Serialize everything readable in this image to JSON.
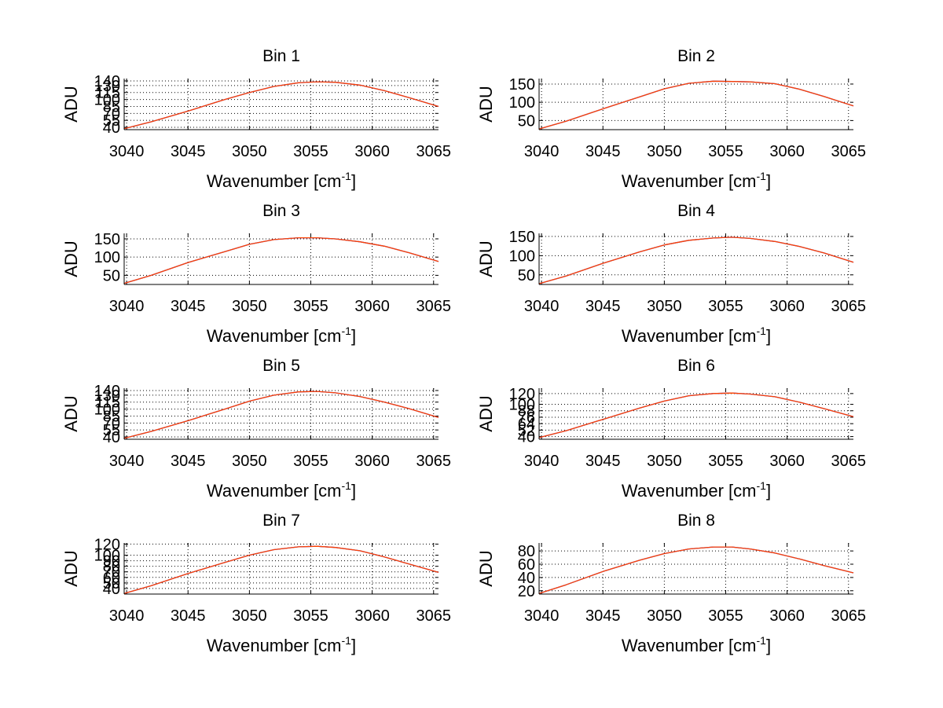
{
  "figure": {
    "background": "#ffffff"
  },
  "chart_data": [
    {
      "type": "line",
      "title": "Bin 1",
      "xlabel": "Wavenumber [cm",
      "xlabel_sup": "-1",
      "xlabel_end": "]",
      "ylabel": "ADU",
      "xlim": [
        3039.8,
        3065.4
      ],
      "ylim": [
        35,
        145
      ],
      "xticks": [
        3040,
        3045,
        3050,
        3055,
        3060,
        3065
      ],
      "yticks": [
        40,
        55,
        70,
        85,
        100,
        115,
        130,
        140
      ],
      "ytick_labels": [
        "40",
        "55",
        "70",
        "85",
        "100",
        "115",
        "130",
        "140"
      ],
      "grid": true,
      "series": [
        {
          "color": "#0000ff",
          "x": [
            3039.8,
            3042,
            3045,
            3048,
            3050,
            3052,
            3054,
            3055.5,
            3057,
            3059,
            3061,
            3063,
            3065.4
          ],
          "y": [
            37,
            52,
            75,
            100,
            115,
            128,
            136,
            138,
            137,
            131,
            119,
            104,
            85
          ]
        },
        {
          "color": "#ff4500",
          "x": [
            3039.8,
            3042,
            3045,
            3048,
            3050,
            3052,
            3054,
            3055.5,
            3057,
            3059,
            3061,
            3063,
            3065.4
          ],
          "y": [
            37,
            52,
            75,
            100,
            115,
            128,
            136,
            138,
            137,
            131,
            119,
            104,
            85
          ]
        }
      ]
    },
    {
      "type": "line",
      "title": "Bin 2",
      "xlabel": "Wavenumber [cm",
      "xlabel_sup": "-1",
      "xlabel_end": "]",
      "ylabel": "ADU",
      "xlim": [
        3039.8,
        3065.4
      ],
      "ylim": [
        25,
        165
      ],
      "xticks": [
        3040,
        3045,
        3050,
        3055,
        3060,
        3065
      ],
      "yticks": [
        50,
        100,
        150
      ],
      "ytick_labels": [
        "50",
        "100",
        "150"
      ],
      "grid": true,
      "series": [
        {
          "color": "#0000ff",
          "x": [
            3039.8,
            3042,
            3045,
            3048,
            3050,
            3052,
            3054,
            3055.5,
            3057,
            3059,
            3061,
            3063,
            3065.4
          ],
          "y": [
            27,
            48,
            82,
            115,
            137,
            152,
            158,
            157,
            156,
            151,
            136,
            116,
            90
          ]
        },
        {
          "color": "#ff4500",
          "x": [
            3039.8,
            3042,
            3045,
            3048,
            3050,
            3052,
            3054,
            3055.5,
            3057,
            3059,
            3061,
            3063,
            3065.4
          ],
          "y": [
            27,
            48,
            82,
            115,
            137,
            152,
            158,
            157,
            156,
            151,
            136,
            116,
            90
          ]
        }
      ]
    },
    {
      "type": "line",
      "title": "Bin 3",
      "xlabel": "Wavenumber [cm",
      "xlabel_sup": "-1",
      "xlabel_end": "]",
      "ylabel": "ADU",
      "xlim": [
        3039.8,
        3065.4
      ],
      "ylim": [
        25,
        165
      ],
      "xticks": [
        3040,
        3045,
        3050,
        3055,
        3060,
        3065
      ],
      "yticks": [
        50,
        100,
        150
      ],
      "ytick_labels": [
        "50",
        "100",
        "150"
      ],
      "grid": true,
      "series": [
        {
          "color": "#0000ff",
          "x": [
            3039.8,
            3042,
            3045,
            3048,
            3050,
            3052,
            3054,
            3055.5,
            3057,
            3059,
            3061,
            3063,
            3065.4
          ],
          "y": [
            28,
            50,
            85,
            115,
            135,
            148,
            153,
            153,
            150,
            142,
            130,
            112,
            88
          ]
        },
        {
          "color": "#ff4500",
          "x": [
            3039.8,
            3042,
            3045,
            3048,
            3050,
            3052,
            3054,
            3055.5,
            3057,
            3059,
            3061,
            3063,
            3065.4
          ],
          "y": [
            28,
            50,
            85,
            115,
            135,
            148,
            153,
            153,
            150,
            142,
            130,
            112,
            88
          ]
        }
      ]
    },
    {
      "type": "line",
      "title": "Bin 4",
      "xlabel": "Wavenumber [cm",
      "xlabel_sup": "-1",
      "xlabel_end": "]",
      "ylabel": "ADU",
      "xlim": [
        3039.8,
        3065.4
      ],
      "ylim": [
        25,
        158
      ],
      "xticks": [
        3040,
        3045,
        3050,
        3055,
        3060,
        3065
      ],
      "yticks": [
        50,
        100,
        150
      ],
      "ytick_labels": [
        "50",
        "100",
        "150"
      ],
      "grid": true,
      "series": [
        {
          "color": "#0000ff",
          "x": [
            3039.8,
            3042,
            3045,
            3048,
            3050,
            3052,
            3054,
            3055.5,
            3057,
            3059,
            3061,
            3063,
            3065.4
          ],
          "y": [
            27,
            47,
            80,
            110,
            128,
            140,
            146,
            148,
            145,
            137,
            124,
            107,
            83
          ]
        },
        {
          "color": "#ff4500",
          "x": [
            3039.8,
            3042,
            3045,
            3048,
            3050,
            3052,
            3054,
            3055.5,
            3057,
            3059,
            3061,
            3063,
            3065.4
          ],
          "y": [
            27,
            47,
            80,
            110,
            128,
            140,
            146,
            148,
            145,
            137,
            124,
            107,
            83
          ]
        }
      ]
    },
    {
      "type": "line",
      "title": "Bin 5",
      "xlabel": "Wavenumber [cm",
      "xlabel_sup": "-1",
      "xlabel_end": "]",
      "ylabel": "ADU",
      "xlim": [
        3039.8,
        3065.4
      ],
      "ylim": [
        35,
        145
      ],
      "xticks": [
        3040,
        3045,
        3050,
        3055,
        3060,
        3065
      ],
      "yticks": [
        40,
        55,
        70,
        85,
        100,
        115,
        130,
        140
      ],
      "ytick_labels": [
        "40",
        "55",
        "70",
        "85",
        "100",
        "115",
        "130",
        "140"
      ],
      "grid": true,
      "series": [
        {
          "color": "#0000ff",
          "x": [
            3039.8,
            3042,
            3045,
            3048,
            3050,
            3052,
            3054,
            3055.5,
            3057,
            3059,
            3061,
            3063,
            3065.4
          ],
          "y": [
            37,
            52,
            75,
            100,
            117,
            130,
            137,
            138,
            135,
            127,
            115,
            101,
            82
          ]
        },
        {
          "color": "#ff4500",
          "x": [
            3039.8,
            3042,
            3045,
            3048,
            3050,
            3052,
            3054,
            3055.5,
            3057,
            3059,
            3061,
            3063,
            3065.4
          ],
          "y": [
            37,
            52,
            75,
            100,
            117,
            130,
            137,
            138,
            135,
            127,
            115,
            101,
            82
          ]
        }
      ]
    },
    {
      "type": "line",
      "title": "Bin 6",
      "xlabel": "Wavenumber [cm",
      "xlabel_sup": "-1",
      "xlabel_end": "]",
      "ylabel": "ADU",
      "xlim": [
        3039.8,
        3065.4
      ],
      "ylim": [
        35,
        130
      ],
      "xticks": [
        3040,
        3045,
        3050,
        3055,
        3060,
        3065
      ],
      "yticks": [
        40,
        52,
        64,
        76,
        88,
        100,
        120
      ],
      "ytick_labels": [
        "40",
        "52",
        "64",
        "76",
        "88",
        "100",
        "120"
      ],
      "grid": true,
      "series": [
        {
          "color": "#0000ff",
          "x": [
            3039.8,
            3042,
            3045,
            3048,
            3050,
            3052,
            3054,
            3055.5,
            3057,
            3059,
            3061,
            3063,
            3065.4
          ],
          "y": [
            38,
            51,
            72,
            93,
            106,
            116,
            120,
            121,
            119,
            114,
            104,
            92,
            77
          ]
        },
        {
          "color": "#ff4500",
          "x": [
            3039.8,
            3042,
            3045,
            3048,
            3050,
            3052,
            3054,
            3055.5,
            3057,
            3059,
            3061,
            3063,
            3065.4
          ],
          "y": [
            38,
            51,
            72,
            93,
            106,
            116,
            120,
            121,
            119,
            114,
            104,
            92,
            77
          ]
        }
      ]
    },
    {
      "type": "line",
      "title": "Bin 7",
      "xlabel": "Wavenumber [cm",
      "xlabel_sup": "-1",
      "xlabel_end": "]",
      "ylabel": "ADU",
      "xlim": [
        3039.8,
        3065.4
      ],
      "ylim": [
        30,
        122
      ],
      "xticks": [
        3040,
        3045,
        3050,
        3055,
        3060,
        3065
      ],
      "yticks": [
        40,
        50,
        60,
        70,
        80,
        90,
        100,
        120
      ],
      "ytick_labels": [
        "40",
        "50",
        "60",
        "70",
        "80",
        "90",
        "100",
        "120"
      ],
      "grid": true,
      "series": [
        {
          "color": "#0000ff",
          "x": [
            3039.8,
            3042,
            3045,
            3048,
            3050,
            3052,
            3054,
            3055.5,
            3057,
            3059,
            3061,
            3063,
            3065.4
          ],
          "y": [
            31,
            45,
            67,
            87,
            100,
            110,
            115,
            116,
            114,
            108,
            97,
            84,
            69
          ]
        },
        {
          "color": "#ff4500",
          "x": [
            3039.8,
            3042,
            3045,
            3048,
            3050,
            3052,
            3054,
            3055.5,
            3057,
            3059,
            3061,
            3063,
            3065.4
          ],
          "y": [
            31,
            45,
            67,
            87,
            100,
            110,
            115,
            116,
            114,
            108,
            97,
            84,
            69
          ]
        }
      ]
    },
    {
      "type": "line",
      "title": "Bin 8",
      "xlabel": "Wavenumber [cm",
      "xlabel_sup": "-1",
      "xlabel_end": "]",
      "ylabel": "ADU",
      "xlim": [
        3039.8,
        3065.4
      ],
      "ylim": [
        15,
        92
      ],
      "xticks": [
        3040,
        3045,
        3050,
        3055,
        3060,
        3065
      ],
      "yticks": [
        20,
        40,
        60,
        80
      ],
      "ytick_labels": [
        "20",
        "40",
        "60",
        "80"
      ],
      "grid": true,
      "series": [
        {
          "color": "#0000ff",
          "x": [
            3039.8,
            3042,
            3045,
            3048,
            3050,
            3052,
            3054,
            3055.5,
            3057,
            3059,
            3061,
            3063,
            3065.4
          ],
          "y": [
            16,
            29,
            49,
            66,
            76,
            83,
            86,
            86,
            83,
            77,
            68,
            58,
            47
          ]
        },
        {
          "color": "#ff4500",
          "x": [
            3039.8,
            3042,
            3045,
            3048,
            3050,
            3052,
            3054,
            3055.5,
            3057,
            3059,
            3061,
            3063,
            3065.4
          ],
          "y": [
            16,
            29,
            49,
            66,
            76,
            83,
            86,
            86,
            83,
            77,
            68,
            58,
            47
          ]
        }
      ]
    }
  ]
}
